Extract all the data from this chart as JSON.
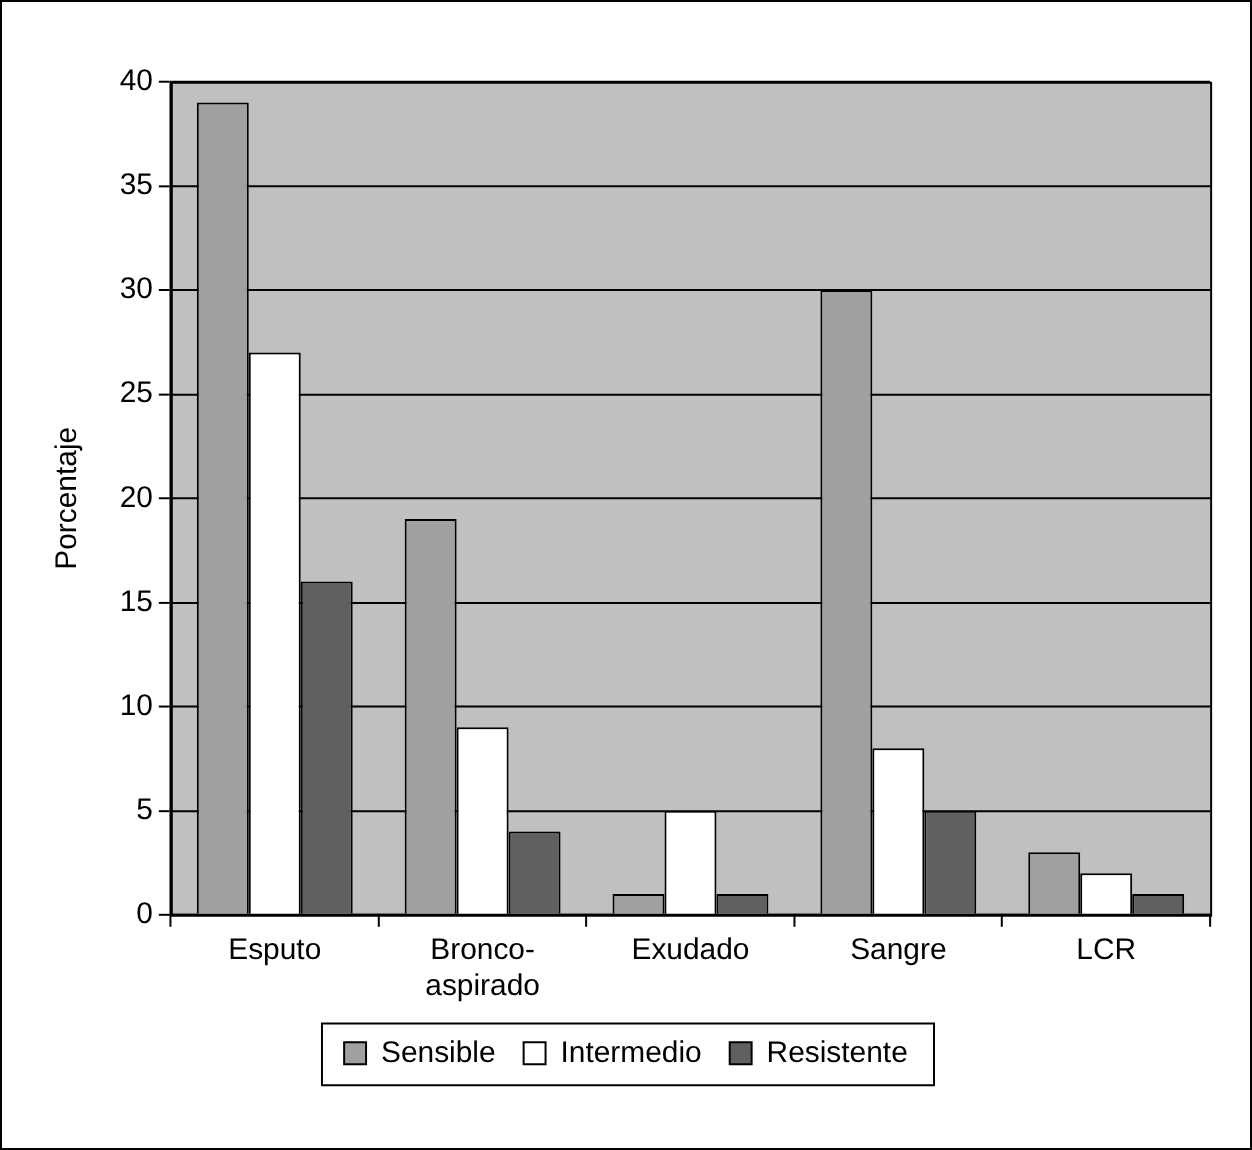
{
  "chart_data": {
    "type": "bar",
    "ylabel": "Porcentaje",
    "categories": [
      "Esputo",
      "Bronco-\naspirado",
      "Exudado",
      "Sangre",
      "LCR"
    ],
    "series": [
      {
        "name": "Sensible",
        "color": "#a0a0a0",
        "values": [
          39,
          19,
          1,
          30,
          3
        ]
      },
      {
        "name": "Intermedio",
        "color": "#ffffff",
        "values": [
          27,
          9,
          5,
          8,
          2
        ]
      },
      {
        "name": "Resistente",
        "color": "#606060",
        "values": [
          16,
          4,
          1,
          5,
          1
        ]
      }
    ],
    "ylim": [
      0,
      40
    ],
    "yticks": [
      0,
      5,
      10,
      15,
      20,
      25,
      30,
      35,
      40
    ],
    "grid": "y",
    "legend": "bottom"
  }
}
